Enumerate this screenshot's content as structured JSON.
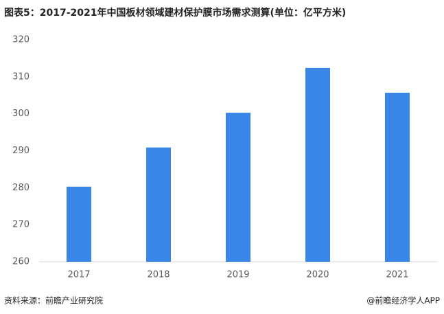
{
  "chart_data": {
    "type": "bar",
    "title": "图表5：2017-2021年中国板材领域建材保护膜市场需求测算(单位：亿平方米)",
    "categories": [
      "2017",
      "2018",
      "2019",
      "2020",
      "2021"
    ],
    "values": [
      280.3,
      290.9,
      300.3,
      312.4,
      305.7
    ],
    "color": "#3a86e8",
    "ylim": [
      260,
      320
    ],
    "yticks": [
      260,
      270,
      280,
      290,
      300,
      310,
      320
    ],
    "grid": false,
    "source": "资料来源：前瞻产业研究院",
    "credit": "@前瞻经济学人APP"
  }
}
